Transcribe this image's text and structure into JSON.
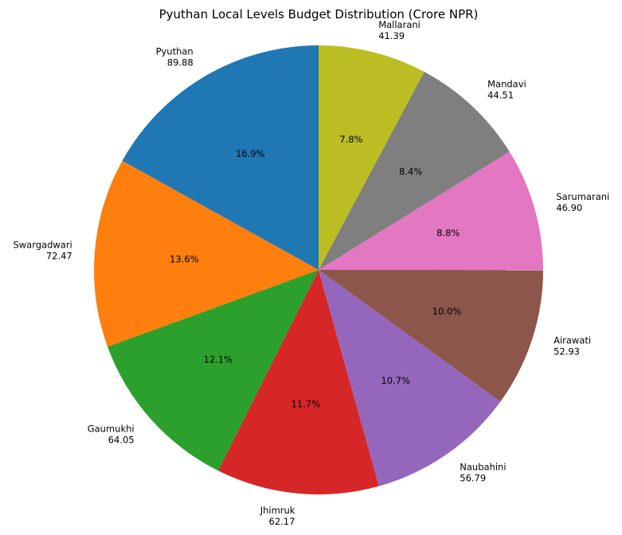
{
  "chart_data": {
    "type": "pie",
    "title": "Pyuthan Local Levels Budget Distribution (Crore NPR)",
    "slices": [
      {
        "label": "Pyuthan",
        "value": 89.88,
        "value_text": "89.88",
        "percent_text": "16.9%",
        "color": "#1f77b4"
      },
      {
        "label": "Swargadwari",
        "value": 72.47,
        "value_text": "72.47",
        "percent_text": "13.6%",
        "color": "#ff7f0e"
      },
      {
        "label": "Gaumukhi",
        "value": 64.05,
        "value_text": "64.05",
        "percent_text": "12.1%",
        "color": "#2ca02c"
      },
      {
        "label": "Jhimruk",
        "value": 62.17,
        "value_text": "62.17",
        "percent_text": "11.7%",
        "color": "#d62728"
      },
      {
        "label": "Naubahini",
        "value": 56.79,
        "value_text": "56.79",
        "percent_text": "10.7%",
        "color": "#9467bd"
      },
      {
        "label": "Airawati",
        "value": 52.93,
        "value_text": "52.93",
        "percent_text": "10.0%",
        "color": "#8c564b"
      },
      {
        "label": "Sarumarani",
        "value": 46.9,
        "value_text": "46.90",
        "percent_text": "8.8%",
        "color": "#e377c2"
      },
      {
        "label": "Mandavi",
        "value": 44.51,
        "value_text": "44.51",
        "percent_text": "8.4%",
        "color": "#7f7f7f"
      },
      {
        "label": "Mallarani",
        "value": 41.39,
        "value_text": "41.39",
        "percent_text": "7.8%",
        "color": "#bcbd22"
      }
    ],
    "start_angle_deg": 90,
    "direction": "counterclockwise",
    "legend": "none"
  }
}
